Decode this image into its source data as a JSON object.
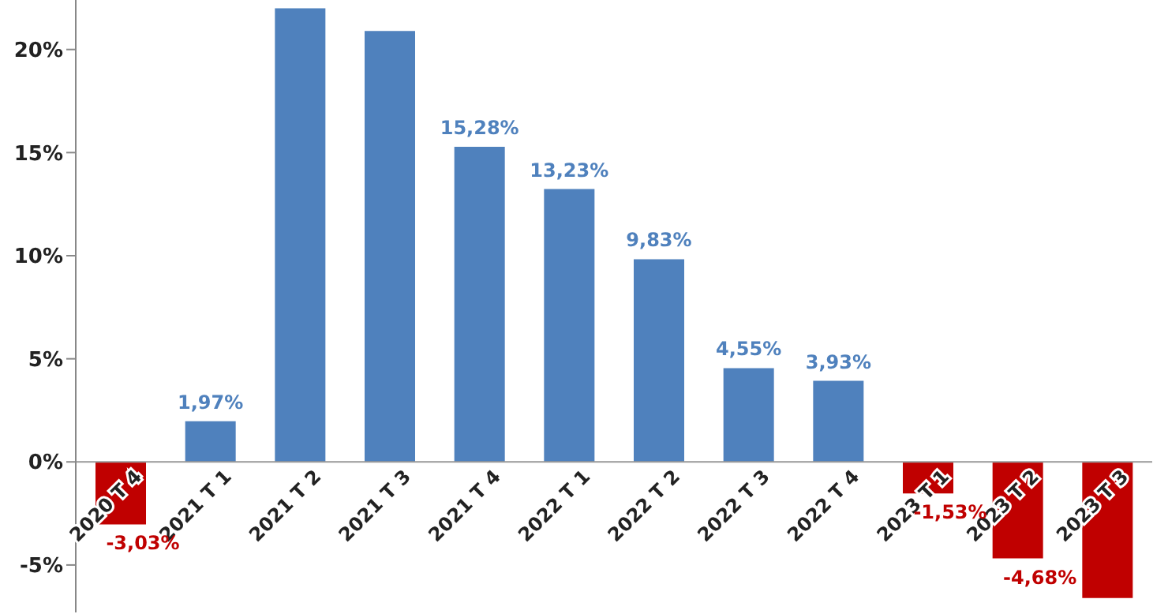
{
  "chart_data": {
    "type": "bar",
    "categories": [
      "2020 T 4",
      "2021 T 1",
      "2021 T 2",
      "2021 T 3",
      "2021 T 4",
      "2022 T 1",
      "2022 T 2",
      "2022 T 3",
      "2022 T 4",
      "2023 T 1",
      "2023 T 2",
      "2023 T 3"
    ],
    "values": [
      -3.03,
      1.97,
      22.0,
      20.9,
      15.28,
      13.23,
      9.83,
      4.55,
      3.93,
      -1.53,
      -4.68,
      -6.6
    ],
    "value_labels": [
      "-3,03%",
      "1,97%",
      null,
      null,
      "15,28%",
      "13,23%",
      "9,83%",
      "4,55%",
      "3,93%",
      "-1,53%",
      "-4,68%",
      null
    ],
    "colors": [
      "#c00000",
      "#4f81bd",
      "#4f81bd",
      "#4f81bd",
      "#4f81bd",
      "#4f81bd",
      "#4f81bd",
      "#4f81bd",
      "#4f81bd",
      "#c00000",
      "#c00000",
      "#c00000"
    ],
    "ylim": [
      -7.3,
      22.4
    ],
    "yticks": [
      {
        "value": -5,
        "label": "-5%"
      },
      {
        "value": 0,
        "label": "0%"
      },
      {
        "value": 5,
        "label": "5%"
      },
      {
        "value": 10,
        "label": "10%"
      },
      {
        "value": 15,
        "label": "15%"
      },
      {
        "value": 20,
        "label": "20%"
      }
    ],
    "grid": false
  }
}
